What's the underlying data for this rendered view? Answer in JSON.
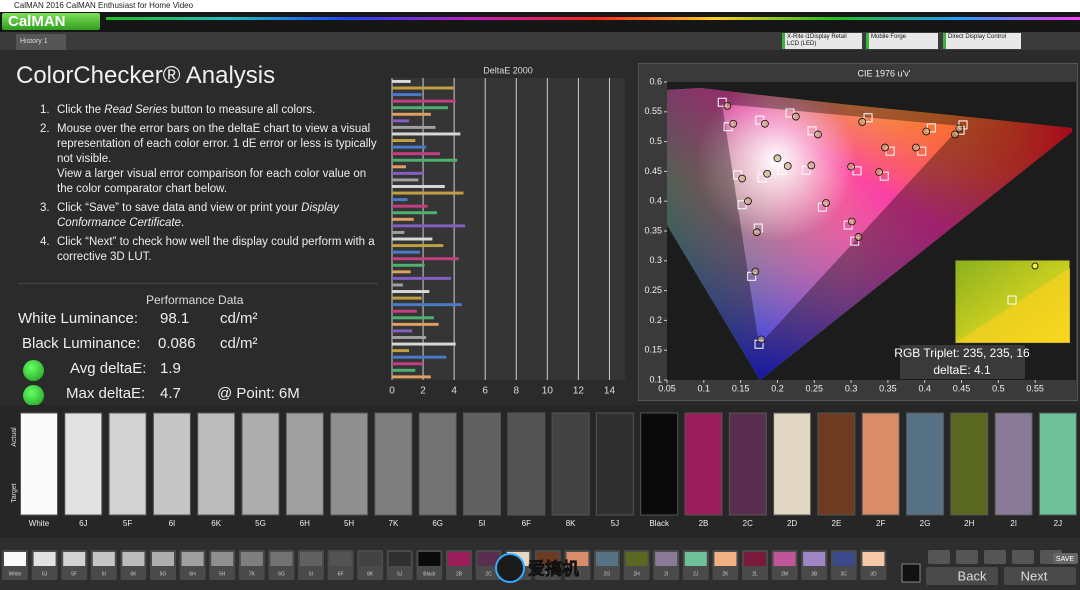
{
  "title_bar": {
    "title": "CalMAN 2016 CalMAN Enthusiast for Home Video"
  },
  "logo": "CalMAN",
  "tab": "History 1",
  "devices": [
    "X-Rite i1Display Retail LCD (LED)",
    "Mobile Forge",
    "Direct Display Control"
  ],
  "heading": "ColorChecker® Analysis",
  "instructions": [
    {
      "number": "1.",
      "parts": [
        "Click the ",
        "Read Series",
        " button to measure all colors."
      ]
    },
    {
      "number": "2.",
      "parts": [
        "Mouse over the error bars on the deltaE chart to view a visual representation of each color error. 1 dE error or less is typically not visible."
      ],
      "note": "View a larger visual error comparison for each color value on the color comparator chart below."
    },
    {
      "number": "3.",
      "parts": [
        "Click “Save” to save data and view or print your ",
        "Display Conformance Certificate",
        "."
      ]
    },
    {
      "number": "4.",
      "parts": [
        "Click “Next” to check how well the display could perform with a corrective 3D LUT."
      ]
    }
  ],
  "performance": {
    "title": "Performance Data",
    "rows": [
      {
        "label": "White Luminance:",
        "value": 98.1,
        "unit": "cd/m²"
      },
      {
        "label": "Black Luminance:",
        "value": 0.086,
        "unit": "cd/m²"
      },
      {
        "label": "Avg deltaE:",
        "value": 1.9
      },
      {
        "label": "Max deltaE:",
        "value": 4.7,
        "point": "@ Point: 6M"
      }
    ]
  },
  "deltae_chart": {
    "type": "bar",
    "title": "DeltaE 2000",
    "values": [
      1.2,
      4.0,
      1.9,
      4.1,
      3.6,
      2.5,
      1.1,
      2.8,
      4.4,
      1.5,
      2.2,
      3.1,
      4.2,
      0.9,
      2.0,
      1.7,
      3.4,
      4.6,
      1.0,
      2.3,
      2.9,
      1.4,
      4.7,
      0.8,
      2.6,
      3.3,
      1.8,
      4.3,
      2.1,
      1.2,
      3.8,
      0.7,
      2.4,
      1.9,
      4.5,
      1.6,
      2.7,
      3.0,
      1.3,
      2.2,
      4.1,
      1.1,
      3.5,
      2.0,
      1.5,
      2.5
    ],
    "colors": [
      "#d8d8d8",
      "#c0a040",
      "#4a7ac8",
      "#c04080",
      "#50b070",
      "#e0a060",
      "#8060c0",
      "#a0a0a0"
    ],
    "xlim": [
      0,
      15
    ],
    "xticks": [
      0,
      2,
      4,
      6,
      8,
      10,
      12,
      14
    ],
    "grid": true
  },
  "cie_chart": {
    "type": "scatter",
    "title": "CIE 1976 u'v'",
    "xlim": [
      0.05,
      0.6
    ],
    "ylim": [
      0.1,
      0.6
    ],
    "xticks": [
      0.05,
      0.1,
      0.15,
      0.2,
      0.25,
      0.3,
      0.35,
      0.4,
      0.45,
      0.5,
      0.55
    ],
    "yticks": [
      0.1,
      0.15,
      0.2,
      0.25,
      0.3,
      0.35,
      0.4,
      0.45,
      0.5,
      0.55,
      0.6
    ],
    "targets": {
      "u": [
        0.125,
        0.133,
        0.174,
        0.152,
        0.165,
        0.175,
        0.146,
        0.179,
        0.239,
        0.261,
        0.296,
        0.305,
        0.308,
        0.345,
        0.353,
        0.396,
        0.409,
        0.448,
        0.452,
        0.323,
        0.206,
        0.247,
        0.217,
        0.176,
        0.198
      ],
      "v": [
        0.566,
        0.525,
        0.355,
        0.394,
        0.274,
        0.16,
        0.444,
        0.439,
        0.452,
        0.39,
        0.36,
        0.333,
        0.451,
        0.442,
        0.484,
        0.484,
        0.523,
        0.519,
        0.528,
        0.54,
        0.452,
        0.518,
        0.548,
        0.536,
        0.47
      ]
    },
    "actuals": {
      "u": [
        0.132,
        0.14,
        0.172,
        0.16,
        0.17,
        0.178,
        0.152,
        0.186,
        0.246,
        0.266,
        0.301,
        0.31,
        0.3,
        0.338,
        0.346,
        0.388,
        0.402,
        0.441,
        0.447,
        0.315,
        0.214,
        0.255,
        0.225,
        0.183,
        0.2
      ],
      "v": [
        0.56,
        0.53,
        0.348,
        0.4,
        0.282,
        0.168,
        0.438,
        0.446,
        0.46,
        0.397,
        0.366,
        0.34,
        0.458,
        0.449,
        0.49,
        0.49,
        0.517,
        0.512,
        0.522,
        0.533,
        0.459,
        0.512,
        0.542,
        0.53,
        0.472
      ]
    },
    "target_color": "#ffffff",
    "actual_color": "#c8a878",
    "inset": {
      "line1": "RGB Triplet: 235, 235, 16",
      "line2": "deltaE: 4.1"
    }
  },
  "comparator": {
    "row_labels": [
      "Actual",
      "Target"
    ],
    "swatches": [
      {
        "label": "White",
        "color": "#fafafa"
      },
      {
        "label": "6J",
        "color": "#e2e2e2"
      },
      {
        "label": "5F",
        "color": "#d2d2d2"
      },
      {
        "label": "6I",
        "color": "#c6c6c6"
      },
      {
        "label": "6K",
        "color": "#bcbcbc"
      },
      {
        "label": "5G",
        "color": "#adadad"
      },
      {
        "label": "6H",
        "color": "#a0a0a0"
      },
      {
        "label": "5H",
        "color": "#8f8f8f"
      },
      {
        "label": "7K",
        "color": "#7f7f7f"
      },
      {
        "label": "6G",
        "color": "#727272"
      },
      {
        "label": "5I",
        "color": "#616161"
      },
      {
        "label": "6F",
        "color": "#535353"
      },
      {
        "label": "8K",
        "color": "#424242"
      },
      {
        "label": "5J",
        "color": "#303030"
      },
      {
        "label": "Black",
        "color": "#0a0a0a"
      },
      {
        "label": "2B",
        "color": "#9b1e5a"
      },
      {
        "label": "2C",
        "color": "#5a2e4e"
      },
      {
        "label": "2D",
        "color": "#e3d8c4"
      },
      {
        "label": "2E",
        "color": "#6d3b22"
      },
      {
        "label": "2F",
        "color": "#d98c68"
      },
      {
        "label": "2G",
        "color": "#577185"
      },
      {
        "label": "2H",
        "color": "#5b6821"
      },
      {
        "label": "2I",
        "color": "#8a7a98"
      },
      {
        "label": "2J",
        "color": "#6ec09a"
      }
    ]
  },
  "toolbar": {
    "swatches": [
      {
        "label": "White",
        "color": "#fafafa"
      },
      {
        "label": "6J",
        "color": "#e2e2e2"
      },
      {
        "label": "5F",
        "color": "#d2d2d2"
      },
      {
        "label": "6I",
        "color": "#c6c6c6"
      },
      {
        "label": "6K",
        "color": "#bcbcbc"
      },
      {
        "label": "5G",
        "color": "#adadad"
      },
      {
        "label": "6H",
        "color": "#a0a0a0"
      },
      {
        "label": "5H",
        "color": "#8f8f8f"
      },
      {
        "label": "7K",
        "color": "#7f7f7f"
      },
      {
        "label": "6G",
        "color": "#727272"
      },
      {
        "label": "5I",
        "color": "#616161"
      },
      {
        "label": "6F",
        "color": "#535353"
      },
      {
        "label": "8K",
        "color": "#424242"
      },
      {
        "label": "5J",
        "color": "#303030"
      },
      {
        "label": "Black",
        "color": "#0a0a0a"
      },
      {
        "label": "2B",
        "color": "#9b1e5a"
      },
      {
        "label": "2C",
        "color": "#5a2e4e"
      },
      {
        "label": "2D",
        "color": "#e3d8c4"
      },
      {
        "label": "2E",
        "color": "#6d3b22"
      },
      {
        "label": "2F",
        "color": "#d98c68"
      },
      {
        "label": "2G",
        "color": "#577185"
      },
      {
        "label": "2H",
        "color": "#5b6821"
      },
      {
        "label": "2I",
        "color": "#8a7a98"
      },
      {
        "label": "2J",
        "color": "#6ec09a"
      },
      {
        "label": "2K",
        "color": "#f2b183"
      },
      {
        "label": "2L",
        "color": "#7a1a3a"
      },
      {
        "label": "2M",
        "color": "#c0569a"
      },
      {
        "label": "3B",
        "color": "#9f86c6"
      },
      {
        "label": "3C",
        "color": "#3a4a8a"
      },
      {
        "label": "3D",
        "color": "#f5c8a8"
      }
    ],
    "save": "SAVE",
    "buttons": [
      "Back",
      "Next"
    ],
    "watermark": "爱搞机"
  }
}
